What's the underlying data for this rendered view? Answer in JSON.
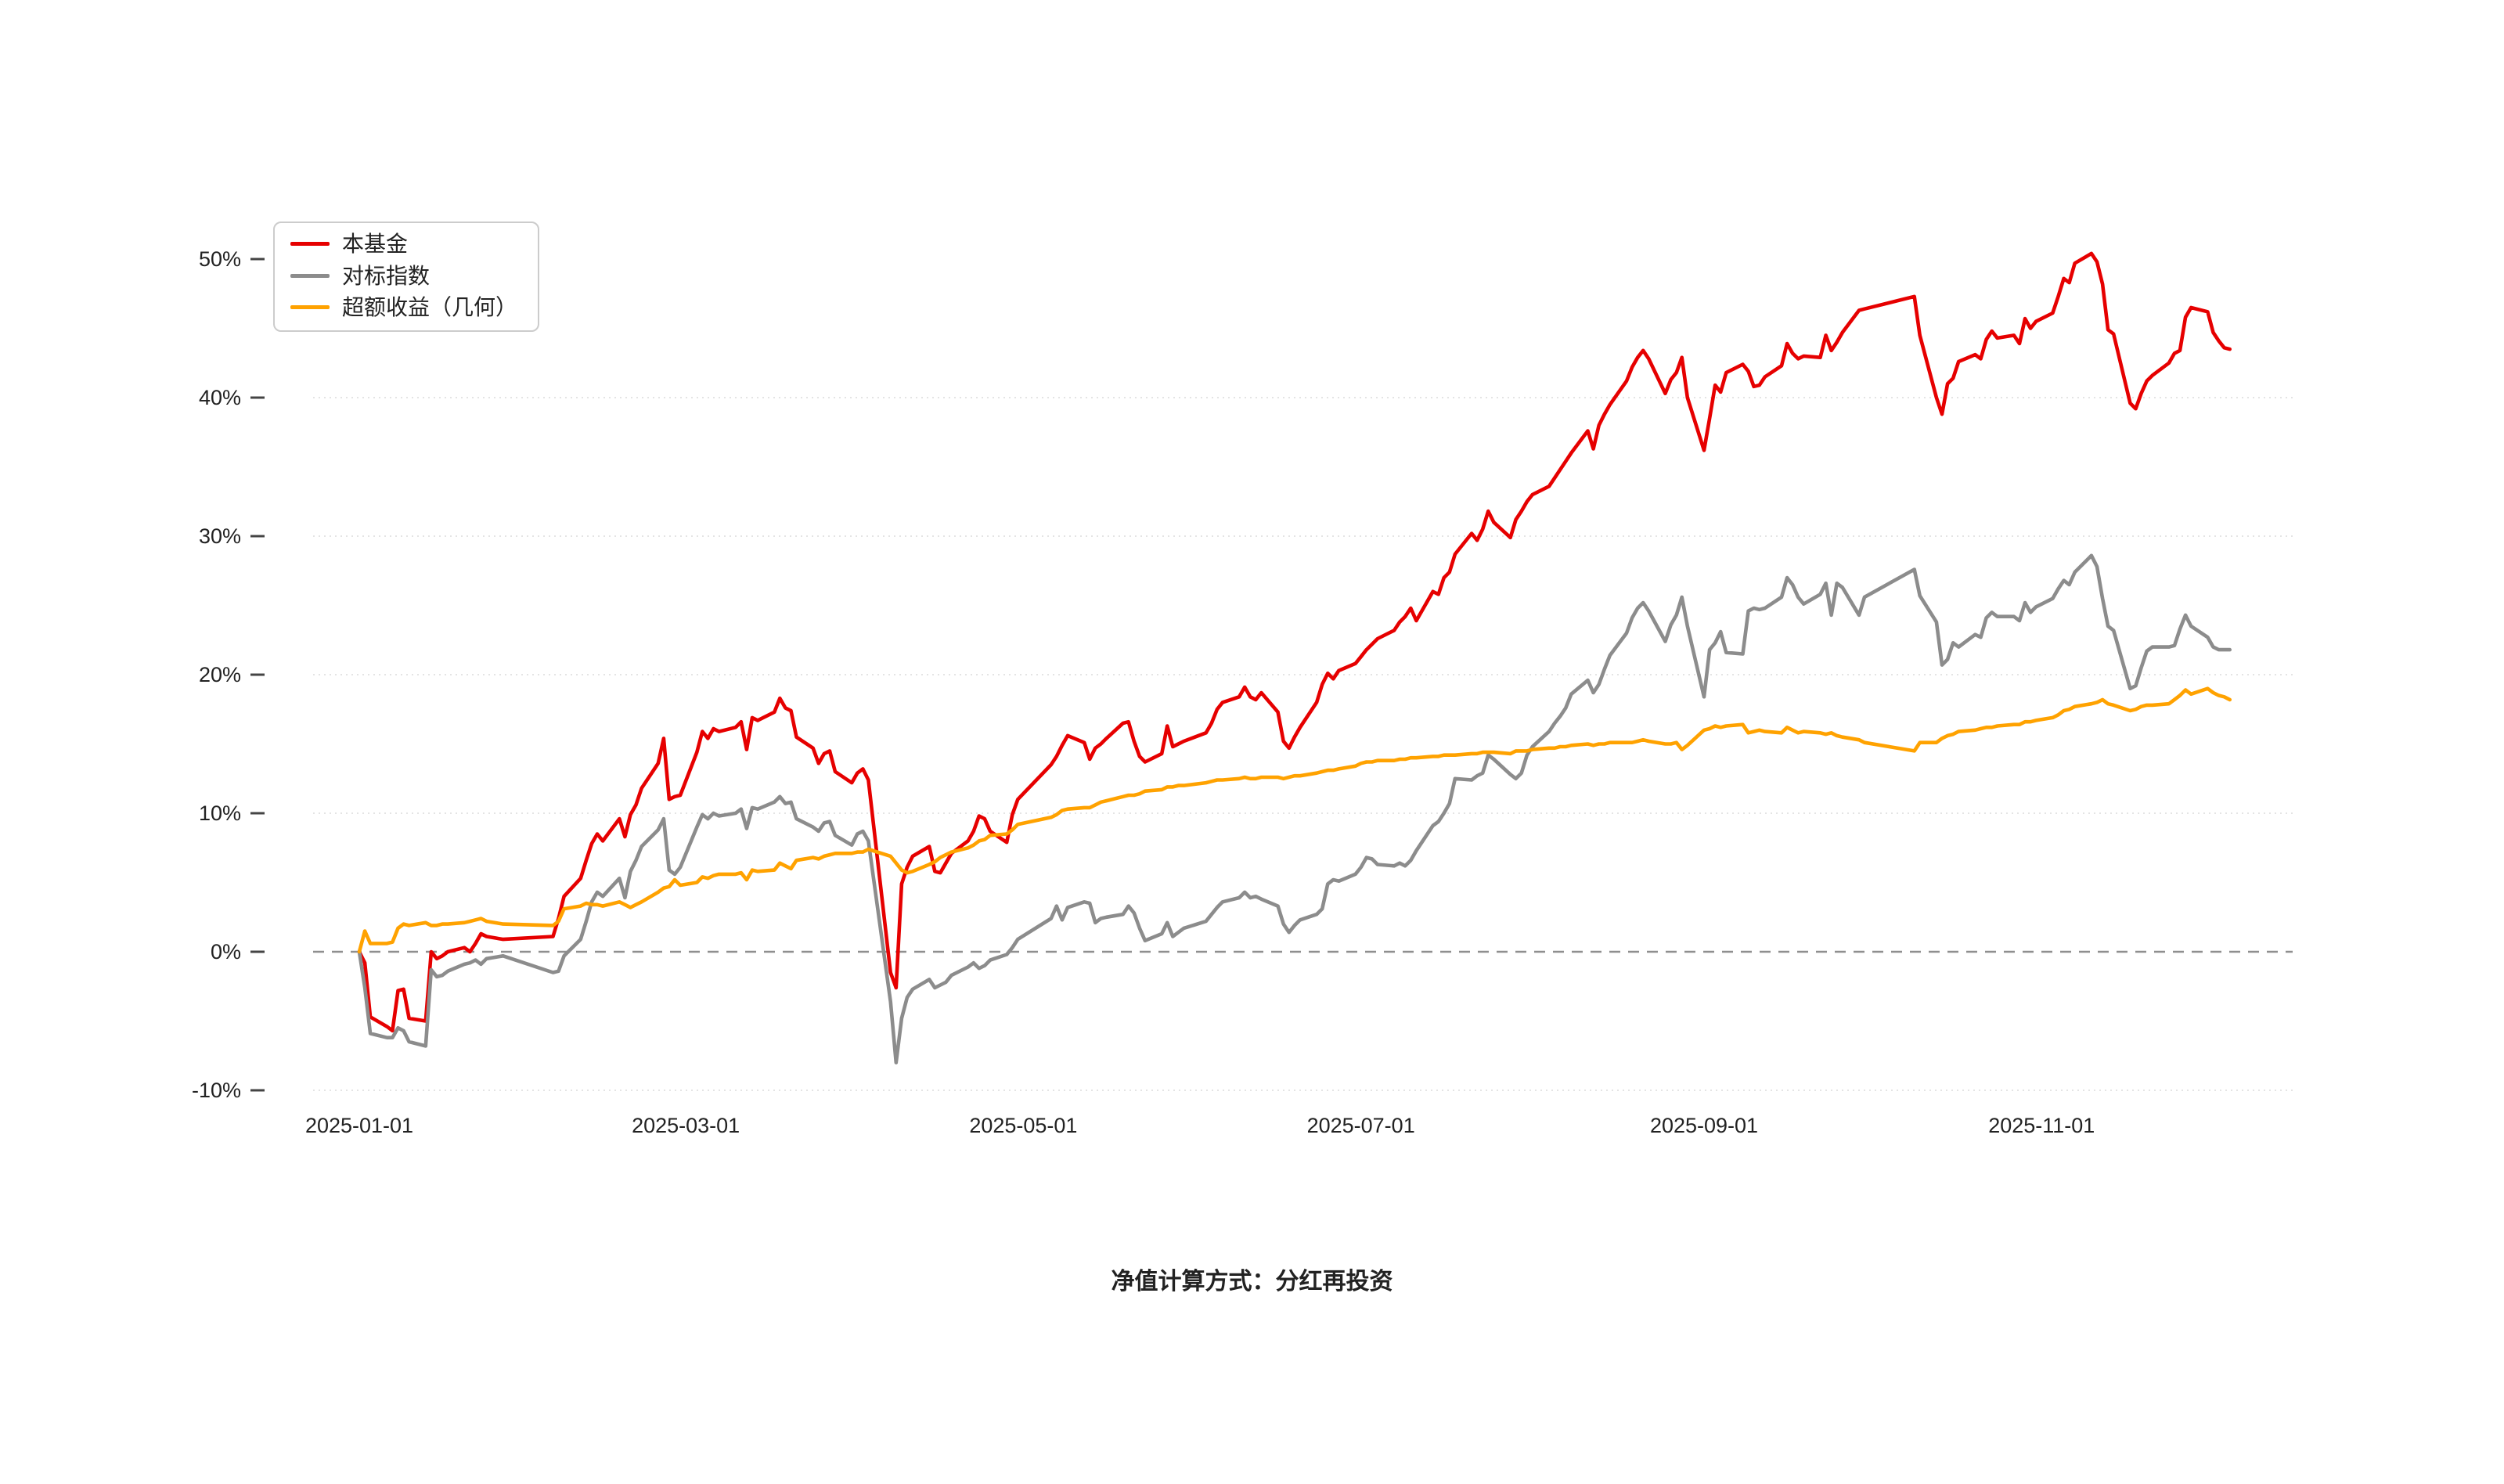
{
  "footer": {
    "caption": "净值计算方式：分红再投资"
  },
  "chart_data": {
    "type": "line",
    "title": "",
    "xlabel": "",
    "ylabel": "",
    "grid": "horizontal-dotted",
    "zero_line": "dashed",
    "legend_position": "top-left",
    "ylim": [
      -10,
      50
    ],
    "y_tick_values": [
      50,
      40,
      30,
      20,
      10,
      0,
      -10
    ],
    "y_tick_labels": [
      "50%",
      "40%",
      "30%",
      "20%",
      "10%",
      "0%",
      "-10%"
    ],
    "x_tick_dates": [
      "2025-01-01",
      "2025-03-01",
      "2025-05-01",
      "2025-07-01",
      "2025-09-01",
      "2025-11-01"
    ],
    "x_tick_labels": [
      "2025-01-01",
      "2025-03-01",
      "2025-05-01",
      "2025-07-01",
      "2025-09-01",
      "2025-11-01"
    ],
    "series_meta": [
      {
        "name": "本基金",
        "color": "#e60000",
        "key": "fund"
      },
      {
        "name": "对标指数",
        "color": "#8c8c8c",
        "key": "benchmark"
      },
      {
        "name": "超额收益（几何）",
        "color": "#ffa200",
        "key": "excess"
      }
    ],
    "points_format": [
      "date",
      "本基金 %",
      "对标指数 %",
      "超额收益（几何） %"
    ],
    "points": [
      [
        "2025-01-01",
        0.0,
        0.0,
        0.0
      ],
      [
        "2025-01-02",
        -0.8,
        -2.6,
        1.5
      ],
      [
        "2025-01-03",
        -4.7,
        -5.9,
        0.6
      ],
      [
        "2025-01-06",
        -5.4,
        -6.2,
        0.6
      ],
      [
        "2025-01-07",
        -5.7,
        -6.2,
        0.7
      ],
      [
        "2025-01-08",
        -2.8,
        -5.5,
        1.7
      ],
      [
        "2025-01-09",
        -2.7,
        -5.7,
        2.0
      ],
      [
        "2025-01-10",
        -4.8,
        -6.5,
        1.9
      ],
      [
        "2025-01-13",
        -5.0,
        -6.8,
        2.1
      ],
      [
        "2025-01-14",
        0.0,
        -1.3,
        1.9
      ],
      [
        "2025-01-15",
        -0.5,
        -1.8,
        1.9
      ],
      [
        "2025-01-16",
        -0.3,
        -1.7,
        2.0
      ],
      [
        "2025-01-17",
        0.0,
        -1.4,
        2.0
      ],
      [
        "2025-01-20",
        0.3,
        -0.9,
        2.1
      ],
      [
        "2025-01-21",
        0.0,
        -0.8,
        2.2
      ],
      [
        "2025-01-22",
        0.6,
        -0.6,
        2.3
      ],
      [
        "2025-01-23",
        1.3,
        -0.9,
        2.4
      ],
      [
        "2025-01-24",
        1.1,
        -0.5,
        2.2
      ],
      [
        "2025-01-27",
        0.9,
        -0.3,
        2.0
      ],
      [
        "2025-02-05",
        1.1,
        -1.5,
        1.9
      ],
      [
        "2025-02-06",
        2.4,
        -1.4,
        2.2
      ],
      [
        "2025-02-07",
        4.0,
        -0.3,
        3.1
      ],
      [
        "2025-02-10",
        5.3,
        0.9,
        3.3
      ],
      [
        "2025-02-11",
        6.6,
        2.2,
        3.5
      ],
      [
        "2025-02-12",
        7.8,
        3.6,
        3.4
      ],
      [
        "2025-02-13",
        8.5,
        4.3,
        3.4
      ],
      [
        "2025-02-14",
        8.0,
        4.0,
        3.3
      ],
      [
        "2025-02-17",
        9.6,
        5.3,
        3.6
      ],
      [
        "2025-02-18",
        8.3,
        3.9,
        3.4
      ],
      [
        "2025-02-19",
        9.9,
        5.8,
        3.2
      ],
      [
        "2025-02-20",
        10.6,
        6.6,
        3.4
      ],
      [
        "2025-02-21",
        11.8,
        7.6,
        3.6
      ],
      [
        "2025-02-24",
        13.6,
        8.8,
        4.3
      ],
      [
        "2025-02-25",
        15.4,
        9.6,
        4.6
      ],
      [
        "2025-02-26",
        11.0,
        5.9,
        4.7
      ],
      [
        "2025-02-27",
        11.2,
        5.6,
        5.2
      ],
      [
        "2025-02-28",
        11.3,
        6.1,
        4.8
      ],
      [
        "2025-03-03",
        14.4,
        9.0,
        5.0
      ],
      [
        "2025-03-04",
        15.9,
        9.9,
        5.4
      ],
      [
        "2025-03-05",
        15.4,
        9.6,
        5.3
      ],
      [
        "2025-03-06",
        16.1,
        10.0,
        5.5
      ],
      [
        "2025-03-07",
        15.9,
        9.8,
        5.6
      ],
      [
        "2025-03-10",
        16.2,
        10.0,
        5.6
      ],
      [
        "2025-03-11",
        16.6,
        10.3,
        5.7
      ],
      [
        "2025-03-12",
        14.6,
        8.9,
        5.2
      ],
      [
        "2025-03-13",
        16.9,
        10.4,
        5.9
      ],
      [
        "2025-03-14",
        16.7,
        10.3,
        5.8
      ],
      [
        "2025-03-17",
        17.3,
        10.8,
        5.9
      ],
      [
        "2025-03-18",
        18.3,
        11.2,
        6.4
      ],
      [
        "2025-03-19",
        17.6,
        10.7,
        6.2
      ],
      [
        "2025-03-20",
        17.4,
        10.8,
        6.0
      ],
      [
        "2025-03-21",
        15.5,
        9.6,
        6.6
      ],
      [
        "2025-03-24",
        14.7,
        9.0,
        6.8
      ],
      [
        "2025-03-25",
        13.6,
        8.7,
        6.7
      ],
      [
        "2025-03-26",
        14.3,
        9.3,
        6.9
      ],
      [
        "2025-03-27",
        14.5,
        9.4,
        7.0
      ],
      [
        "2025-03-28",
        13.0,
        8.4,
        7.1
      ],
      [
        "2025-03-31",
        12.2,
        7.7,
        7.1
      ],
      [
        "2025-04-01",
        12.9,
        8.5,
        7.2
      ],
      [
        "2025-04-02",
        13.2,
        8.7,
        7.2
      ],
      [
        "2025-04-03",
        12.4,
        8.0,
        7.4
      ],
      [
        "2025-04-07",
        -1.5,
        -3.6,
        6.9
      ],
      [
        "2025-04-08",
        -2.6,
        -8.0,
        6.4
      ],
      [
        "2025-04-09",
        4.9,
        -4.8,
        5.9
      ],
      [
        "2025-04-10",
        6.1,
        -3.3,
        5.7
      ],
      [
        "2025-04-11",
        6.9,
        -2.7,
        5.8
      ],
      [
        "2025-04-14",
        7.6,
        -2.0,
        6.3
      ],
      [
        "2025-04-15",
        5.8,
        -2.6,
        6.5
      ],
      [
        "2025-04-16",
        5.7,
        -2.4,
        6.8
      ],
      [
        "2025-04-17",
        6.4,
        -2.2,
        7.0
      ],
      [
        "2025-04-18",
        7.1,
        -1.7,
        7.2
      ],
      [
        "2025-04-21",
        8.0,
        -1.1,
        7.5
      ],
      [
        "2025-04-22",
        8.7,
        -0.8,
        7.7
      ],
      [
        "2025-04-23",
        9.8,
        -1.2,
        8.0
      ],
      [
        "2025-04-24",
        9.6,
        -1.0,
        8.1
      ],
      [
        "2025-04-25",
        8.7,
        -0.6,
        8.4
      ],
      [
        "2025-04-28",
        7.9,
        -0.2,
        8.5
      ],
      [
        "2025-04-29",
        9.9,
        0.3,
        8.8
      ],
      [
        "2025-04-30",
        11.0,
        0.9,
        9.2
      ],
      [
        "2025-05-06",
        13.5,
        2.4,
        9.7
      ],
      [
        "2025-05-07",
        14.1,
        3.3,
        9.9
      ],
      [
        "2025-05-08",
        14.9,
        2.3,
        10.2
      ],
      [
        "2025-05-09",
        15.6,
        3.2,
        10.3
      ],
      [
        "2025-05-12",
        15.1,
        3.6,
        10.4
      ],
      [
        "2025-05-13",
        13.9,
        3.5,
        10.4
      ],
      [
        "2025-05-14",
        14.7,
        2.1,
        10.6
      ],
      [
        "2025-05-15",
        15.0,
        2.4,
        10.8
      ],
      [
        "2025-05-16",
        15.4,
        2.5,
        10.9
      ],
      [
        "2025-05-19",
        16.5,
        2.7,
        11.2
      ],
      [
        "2025-05-20",
        16.6,
        3.3,
        11.3
      ],
      [
        "2025-05-21",
        15.2,
        2.8,
        11.3
      ],
      [
        "2025-05-22",
        14.1,
        1.7,
        11.4
      ],
      [
        "2025-05-23",
        13.7,
        0.8,
        11.6
      ],
      [
        "2025-05-26",
        14.3,
        1.3,
        11.7
      ],
      [
        "2025-05-27",
        16.3,
        2.1,
        11.9
      ],
      [
        "2025-05-28",
        14.8,
        1.1,
        11.9
      ],
      [
        "2025-05-29",
        15.0,
        1.4,
        12.0
      ],
      [
        "2025-05-30",
        15.2,
        1.7,
        12.0
      ],
      [
        "2025-06-03",
        15.8,
        2.2,
        12.2
      ],
      [
        "2025-06-04",
        16.5,
        2.7,
        12.3
      ],
      [
        "2025-06-05",
        17.5,
        3.2,
        12.4
      ],
      [
        "2025-06-06",
        18.0,
        3.6,
        12.4
      ],
      [
        "2025-06-09",
        18.4,
        3.9,
        12.5
      ],
      [
        "2025-06-10",
        19.1,
        4.3,
        12.6
      ],
      [
        "2025-06-11",
        18.4,
        3.9,
        12.5
      ],
      [
        "2025-06-12",
        18.2,
        4.0,
        12.5
      ],
      [
        "2025-06-13",
        18.7,
        3.8,
        12.6
      ],
      [
        "2025-06-16",
        17.3,
        3.3,
        12.6
      ],
      [
        "2025-06-17",
        15.2,
        2.0,
        12.5
      ],
      [
        "2025-06-18",
        14.7,
        1.4,
        12.6
      ],
      [
        "2025-06-19",
        15.5,
        1.9,
        12.7
      ],
      [
        "2025-06-20",
        16.2,
        2.3,
        12.7
      ],
      [
        "2025-06-23",
        18.0,
        2.7,
        12.9
      ],
      [
        "2025-06-24",
        19.3,
        3.1,
        13.0
      ],
      [
        "2025-06-25",
        20.1,
        4.9,
        13.1
      ],
      [
        "2025-06-26",
        19.7,
        5.2,
        13.1
      ],
      [
        "2025-06-27",
        20.3,
        5.1,
        13.2
      ],
      [
        "2025-06-30",
        20.8,
        5.6,
        13.4
      ],
      [
        "2025-07-01",
        21.3,
        6.1,
        13.6
      ],
      [
        "2025-07-02",
        21.8,
        6.8,
        13.7
      ],
      [
        "2025-07-03",
        22.2,
        6.7,
        13.7
      ],
      [
        "2025-07-04",
        22.6,
        6.3,
        13.8
      ],
      [
        "2025-07-07",
        23.2,
        6.2,
        13.8
      ],
      [
        "2025-07-08",
        23.8,
        6.4,
        13.9
      ],
      [
        "2025-07-09",
        24.2,
        6.2,
        13.9
      ],
      [
        "2025-07-10",
        24.8,
        6.6,
        14.0
      ],
      [
        "2025-07-11",
        23.9,
        7.3,
        14.0
      ],
      [
        "2025-07-14",
        26.0,
        9.1,
        14.1
      ],
      [
        "2025-07-15",
        25.8,
        9.4,
        14.1
      ],
      [
        "2025-07-16",
        27.0,
        10.0,
        14.2
      ],
      [
        "2025-07-17",
        27.4,
        10.7,
        14.2
      ],
      [
        "2025-07-18",
        28.7,
        12.5,
        14.2
      ],
      [
        "2025-07-21",
        30.2,
        12.4,
        14.3
      ],
      [
        "2025-07-22",
        29.7,
        12.7,
        14.3
      ],
      [
        "2025-07-23",
        30.5,
        12.9,
        14.4
      ],
      [
        "2025-07-24",
        31.8,
        14.2,
        14.4
      ],
      [
        "2025-07-25",
        31.0,
        13.9,
        14.4
      ],
      [
        "2025-07-28",
        29.9,
        12.8,
        14.3
      ],
      [
        "2025-07-29",
        31.2,
        12.5,
        14.5
      ],
      [
        "2025-07-30",
        31.8,
        12.9,
        14.5
      ],
      [
        "2025-07-31",
        32.5,
        14.2,
        14.5
      ],
      [
        "2025-08-01",
        33.0,
        14.8,
        14.6
      ],
      [
        "2025-08-04",
        33.6,
        15.9,
        14.7
      ],
      [
        "2025-08-05",
        34.2,
        16.5,
        14.7
      ],
      [
        "2025-08-06",
        34.8,
        17.0,
        14.8
      ],
      [
        "2025-08-07",
        35.4,
        17.6,
        14.8
      ],
      [
        "2025-08-08",
        36.0,
        18.6,
        14.9
      ],
      [
        "2025-08-11",
        37.6,
        19.6,
        15.0
      ],
      [
        "2025-08-12",
        36.3,
        18.7,
        14.9
      ],
      [
        "2025-08-13",
        38.0,
        19.3,
        15.0
      ],
      [
        "2025-08-14",
        38.8,
        20.4,
        15.0
      ],
      [
        "2025-08-15",
        39.5,
        21.4,
        15.1
      ],
      [
        "2025-08-18",
        41.2,
        23.0,
        15.1
      ],
      [
        "2025-08-19",
        42.2,
        24.1,
        15.1
      ],
      [
        "2025-08-20",
        42.9,
        24.8,
        15.2
      ],
      [
        "2025-08-21",
        43.4,
        25.2,
        15.3
      ],
      [
        "2025-08-22",
        42.8,
        24.6,
        15.2
      ],
      [
        "2025-08-25",
        40.3,
        22.4,
        15.0
      ],
      [
        "2025-08-26",
        41.3,
        23.6,
        15.0
      ],
      [
        "2025-08-27",
        41.8,
        24.3,
        15.1
      ],
      [
        "2025-08-28",
        42.9,
        25.6,
        14.6
      ],
      [
        "2025-08-29",
        40.0,
        23.5,
        14.9
      ],
      [
        "2025-09-01",
        36.2,
        18.4,
        16.0
      ],
      [
        "2025-09-02",
        38.5,
        21.8,
        16.1
      ],
      [
        "2025-09-03",
        40.9,
        22.3,
        16.3
      ],
      [
        "2025-09-04",
        40.4,
        23.1,
        16.2
      ],
      [
        "2025-09-05",
        41.8,
        21.6,
        16.3
      ],
      [
        "2025-09-08",
        42.4,
        21.5,
        16.4
      ],
      [
        "2025-09-09",
        41.9,
        24.6,
        15.8
      ],
      [
        "2025-09-10",
        40.8,
        24.8,
        15.9
      ],
      [
        "2025-09-11",
        40.9,
        24.7,
        16.0
      ],
      [
        "2025-09-12",
        41.5,
        24.8,
        15.9
      ],
      [
        "2025-09-15",
        42.3,
        25.6,
        15.8
      ],
      [
        "2025-09-16",
        43.9,
        27.0,
        16.2
      ],
      [
        "2025-09-17",
        43.2,
        26.5,
        16.0
      ],
      [
        "2025-09-18",
        42.8,
        25.6,
        15.8
      ],
      [
        "2025-09-19",
        43.0,
        25.1,
        15.9
      ],
      [
        "2025-09-22",
        42.9,
        25.8,
        15.8
      ],
      [
        "2025-09-23",
        44.5,
        26.6,
        15.7
      ],
      [
        "2025-09-24",
        43.4,
        24.3,
        15.8
      ],
      [
        "2025-09-25",
        44.0,
        26.6,
        15.6
      ],
      [
        "2025-09-26",
        44.7,
        26.3,
        15.5
      ],
      [
        "2025-09-29",
        46.3,
        24.3,
        15.3
      ],
      [
        "2025-09-30",
        46.4,
        25.6,
        15.1
      ],
      [
        "2025-10-09",
        47.3,
        27.6,
        14.5
      ],
      [
        "2025-10-10",
        44.5,
        25.7,
        15.1
      ],
      [
        "2025-10-13",
        40.0,
        23.8,
        15.1
      ],
      [
        "2025-10-14",
        38.8,
        20.7,
        15.4
      ],
      [
        "2025-10-15",
        41.0,
        21.1,
        15.6
      ],
      [
        "2025-10-16",
        41.4,
        22.3,
        15.7
      ],
      [
        "2025-10-17",
        42.6,
        22.0,
        15.9
      ],
      [
        "2025-10-20",
        43.1,
        22.9,
        16.0
      ],
      [
        "2025-10-21",
        42.8,
        22.7,
        16.1
      ],
      [
        "2025-10-22",
        44.2,
        24.1,
        16.2
      ],
      [
        "2025-10-23",
        44.8,
        24.5,
        16.2
      ],
      [
        "2025-10-24",
        44.3,
        24.2,
        16.3
      ],
      [
        "2025-10-27",
        44.5,
        24.2,
        16.4
      ],
      [
        "2025-10-28",
        43.9,
        23.9,
        16.4
      ],
      [
        "2025-10-29",
        45.7,
        25.2,
        16.6
      ],
      [
        "2025-10-30",
        45.0,
        24.5,
        16.6
      ],
      [
        "2025-10-31",
        45.5,
        24.9,
        16.7
      ],
      [
        "2025-11-03",
        46.1,
        25.5,
        16.9
      ],
      [
        "2025-11-04",
        47.3,
        26.2,
        17.1
      ],
      [
        "2025-11-05",
        48.6,
        26.8,
        17.4
      ],
      [
        "2025-11-06",
        48.3,
        26.5,
        17.5
      ],
      [
        "2025-11-07",
        49.7,
        27.4,
        17.7
      ],
      [
        "2025-11-10",
        50.4,
        28.6,
        17.9
      ],
      [
        "2025-11-11",
        49.8,
        27.8,
        18.0
      ],
      [
        "2025-11-12",
        48.2,
        25.5,
        18.2
      ],
      [
        "2025-11-13",
        44.9,
        23.5,
        17.9
      ],
      [
        "2025-11-14",
        44.6,
        23.2,
        17.8
      ],
      [
        "2025-11-17",
        39.6,
        19.0,
        17.4
      ],
      [
        "2025-11-18",
        39.2,
        19.2,
        17.5
      ],
      [
        "2025-11-19",
        40.3,
        20.5,
        17.7
      ],
      [
        "2025-11-20",
        41.2,
        21.7,
        17.8
      ],
      [
        "2025-11-21",
        41.6,
        22.0,
        17.8
      ],
      [
        "2025-11-24",
        42.5,
        22.0,
        17.9
      ],
      [
        "2025-11-25",
        43.2,
        22.1,
        18.2
      ],
      [
        "2025-11-26",
        43.4,
        23.3,
        18.5
      ],
      [
        "2025-11-27",
        45.8,
        24.3,
        18.9
      ],
      [
        "2025-11-28",
        46.5,
        23.5,
        18.6
      ],
      [
        "2025-12-01",
        46.2,
        22.7,
        19.0
      ],
      [
        "2025-12-02",
        44.7,
        22.0,
        18.7
      ],
      [
        "2025-12-03",
        44.1,
        21.8,
        18.5
      ],
      [
        "2025-12-04",
        43.6,
        21.8,
        18.4
      ],
      [
        "2025-12-05",
        43.5,
        21.8,
        18.2
      ]
    ]
  }
}
